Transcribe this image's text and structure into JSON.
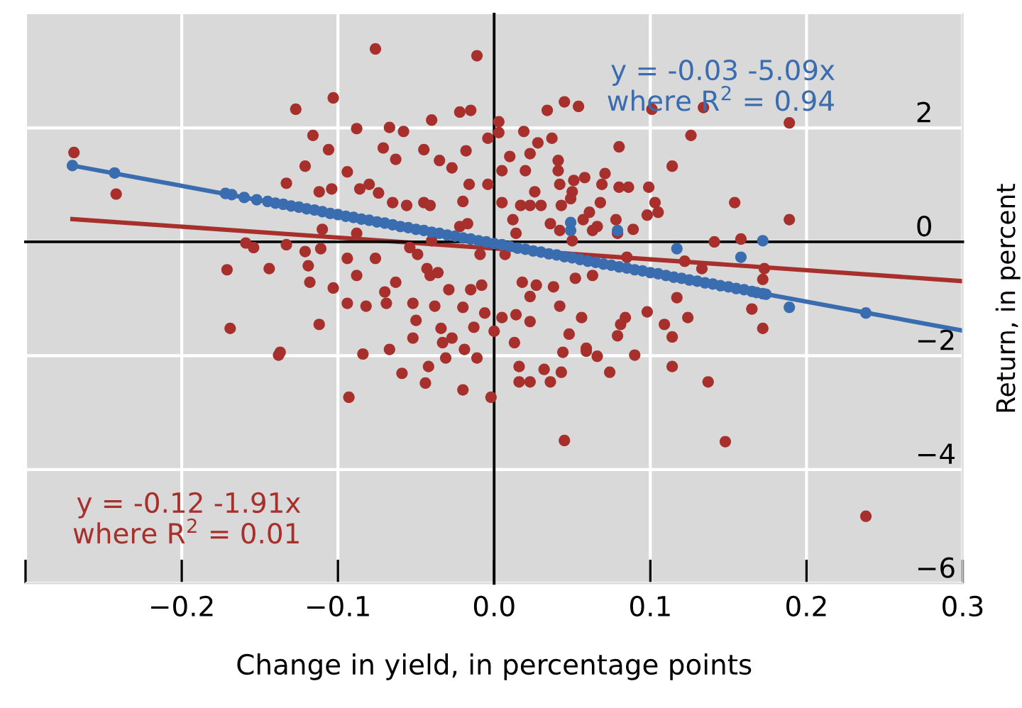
{
  "chart_data": {
    "type": "scatter",
    "xlabel": "Change in yield, in percentage points",
    "ylabel": "Return, in percent",
    "xlim": [
      -0.3,
      0.3
    ],
    "ylim": [
      -6,
      4
    ],
    "xticks": [
      {
        "value": -0.3,
        "label": null
      },
      {
        "value": -0.2,
        "label": "−0.2"
      },
      {
        "value": -0.1,
        "label": "−0.1"
      },
      {
        "value": 0,
        "label": "0.0"
      },
      {
        "value": 0.1,
        "label": "0.1"
      },
      {
        "value": 0.2,
        "label": "0.2"
      },
      {
        "value": 0.3,
        "label": "0.3"
      }
    ],
    "yticks": [
      {
        "value": -6,
        "label": "−6"
      },
      {
        "value": -4,
        "label": "−4"
      },
      {
        "value": -2,
        "label": "−2"
      },
      {
        "value": 0,
        "label": "0"
      },
      {
        "value": 2,
        "label": "2"
      }
    ],
    "grid": true,
    "marker": "circle",
    "legend": false,
    "annotations": [
      "y = -0.12 -1.91x\nwhere R$^{2}$ = 0.01",
      "y = -0.03 -5.09x\nwhere R$^{2}$ = 0.94"
    ],
    "series": [
      {
        "color": "#a8302c",
        "x": [
          -0.076,
          0.045,
          0.054,
          0.101,
          0.134,
          0.189,
          0.034,
          0.126,
          0.114,
          0.08,
          0.154,
          0.189,
          0.141,
          0.158,
          0.173,
          0.172,
          0.165,
          0.172,
          0.124,
          0.109,
          0.114,
          0.117,
          0.122,
          0.133,
          0.105,
          0.098,
          0.103,
          0.089,
          0.078,
          0.085,
          0.069,
          0.068,
          0.08,
          0.086,
          0.071,
          0.058,
          0.051,
          0.05,
          0.042,
          0.043,
          0.041,
          0.041,
          0.049,
          0.061,
          0.066,
          0.099,
          0.019,
          0.023,
          0.028,
          0.037,
          0.01,
          0.005,
          0.02,
          0.003,
          0.003,
          -0.004,
          -0.004,
          0.017,
          0.023,
          0.03,
          0.026,
          0.005,
          0.012,
          0.014,
          0.036,
          0.042,
          0.05,
          0.057,
          0.063,
          0.079,
          0.007,
          0.018,
          0.027,
          0.038,
          0.042,
          0.052,
          0.063,
          0.056,
          0.014,
          0.023,
          0.023,
          0.005,
          0.013,
          0.048,
          0.059,
          0.081,
          0.084,
          0.079,
          0.098,
          0.0,
          0.045,
          0.148,
          0.238,
          -0.138,
          -0.093,
          -0.059,
          -0.044,
          -0.042,
          -0.02,
          -0.002,
          0.016,
          0.023,
          0.036,
          0.043,
          0.032,
          0.016,
          0.074,
          0.114,
          0.137,
          0.09,
          0.066,
          0.059,
          0.044,
          -0.019,
          -0.031,
          -0.067,
          -0.084,
          -0.011,
          -0.269,
          -0.242,
          -0.171,
          -0.144,
          -0.159,
          -0.154,
          -0.133,
          -0.133,
          -0.121,
          -0.127,
          -0.116,
          -0.106,
          -0.103,
          -0.121,
          -0.111,
          -0.119,
          -0.118,
          -0.103,
          -0.11,
          -0.112,
          -0.104,
          -0.169,
          -0.112,
          -0.137,
          -0.094,
          -0.088,
          -0.088,
          -0.094,
          -0.088,
          -0.086,
          -0.08,
          -0.074,
          -0.071,
          -0.067,
          -0.058,
          -0.063,
          -0.045,
          -0.04,
          -0.035,
          -0.027,
          -0.045,
          -0.041,
          -0.056,
          -0.065,
          -0.022,
          -0.015,
          -0.011,
          -0.018,
          -0.016,
          -0.02,
          -0.094,
          -0.082,
          -0.07,
          -0.063,
          -0.069,
          -0.052,
          -0.052,
          -0.05,
          -0.049,
          -0.043,
          -0.041,
          -0.038,
          -0.036,
          -0.034,
          -0.033,
          -0.027,
          -0.029,
          -0.02,
          -0.015,
          -0.022,
          -0.017,
          -0.009,
          -0.008,
          -0.006,
          -0.013,
          -0.04,
          -0.054,
          -0.076
        ],
        "values": [
          3.39,
          2.46,
          2.38,
          2.33,
          2.36,
          2.09,
          2.31,
          1.87,
          1.33,
          1.67,
          0.69,
          0.39,
          0.0,
          0.05,
          -0.47,
          -0.66,
          -1.18,
          -1.52,
          -1.33,
          -1.45,
          -1.67,
          -0.98,
          -0.34,
          -0.47,
          0.52,
          0.47,
          0.69,
          0.22,
          0.39,
          -0.27,
          1.01,
          0.69,
          0.96,
          0.96,
          1.2,
          1.13,
          1.08,
          0.88,
          1.01,
          0.64,
          1.43,
          1.25,
          0.76,
          0.52,
          0.27,
          0.96,
          1.94,
          1.55,
          1.74,
          1.82,
          1.5,
          1.25,
          1.25,
          2.11,
          1.92,
          1.82,
          1.01,
          0.64,
          0.64,
          0.64,
          0.88,
          0.69,
          0.39,
          0.15,
          0.32,
          0.2,
          0.02,
          0.39,
          0.2,
          0.15,
          -0.22,
          -0.71,
          -0.76,
          -0.79,
          -1.13,
          -0.64,
          -0.59,
          -1.33,
          -1.28,
          -0.96,
          -1.4,
          -1.33,
          -1.77,
          -1.62,
          -1.87,
          -1.45,
          -1.33,
          -1.65,
          -1.23,
          -1.57,
          -3.49,
          -3.51,
          -4.82,
          -1.99,
          -2.73,
          -2.31,
          -2.48,
          -2.19,
          -2.6,
          -2.73,
          -2.46,
          -2.46,
          -2.46,
          -2.29,
          -2.24,
          -2.19,
          -2.29,
          -2.19,
          -2.46,
          -1.99,
          -2.01,
          -1.92,
          -1.94,
          -1.89,
          -2.04,
          -1.89,
          -1.97,
          -2.04,
          1.57,
          0.84,
          -0.49,
          -0.47,
          -0.02,
          -0.1,
          -0.05,
          1.03,
          1.33,
          2.33,
          1.87,
          1.62,
          2.53,
          -0.17,
          -0.12,
          -0.42,
          -0.71,
          -0.81,
          0.22,
          0.88,
          0.93,
          -1.52,
          -1.45,
          -1.94,
          1.23,
          1.99,
          0.15,
          -0.29,
          -0.59,
          0.93,
          1.01,
          0.86,
          1.65,
          2.01,
          1.94,
          1.45,
          1.62,
          2.14,
          1.43,
          1.3,
          0.69,
          0.64,
          0.64,
          0.69,
          2.28,
          2.31,
          3.27,
          1.6,
          1.01,
          0.71,
          -1.08,
          -1.13,
          -0.88,
          -0.71,
          -1.08,
          -1.69,
          -1.08,
          -1.38,
          -0.22,
          -0.47,
          -0.59,
          -1.13,
          -0.54,
          -1.52,
          -1.77,
          -1.69,
          -0.84,
          -1.15,
          -0.84,
          0.27,
          0.32,
          -0.22,
          -0.76,
          -1.25,
          -1.5,
          0.02,
          -0.1,
          -0.29
        ]
      },
      {
        "color": "#3a6cb0",
        "x": [
          -0.27,
          -0.243,
          -0.172,
          -0.168,
          -0.16,
          -0.152,
          -0.145,
          -0.14,
          -0.135,
          -0.13,
          -0.125,
          -0.12,
          -0.115,
          -0.11,
          -0.105,
          -0.1,
          -0.095,
          -0.09,
          -0.085,
          -0.08,
          -0.075,
          -0.07,
          -0.065,
          -0.06,
          -0.055,
          -0.05,
          -0.045,
          -0.04,
          -0.035,
          -0.03,
          -0.025,
          -0.02,
          -0.015,
          -0.01,
          -0.005,
          0,
          0.005,
          0.01,
          0.015,
          0.02,
          0.025,
          0.03,
          0.035,
          0.04,
          0.045,
          0.05,
          0.055,
          0.06,
          0.065,
          0.07,
          0.075,
          0.08,
          0.085,
          0.09,
          0.095,
          0.1,
          0.105,
          0.11,
          0.115,
          0.12,
          0.125,
          0.13,
          0.135,
          0.14,
          0.145,
          0.15,
          0.155,
          0.16,
          0.165,
          0.168,
          0.172,
          0.174,
          0.049,
          0.049,
          0.079,
          0.117,
          0.158,
          0.172,
          0.189,
          0.238
        ],
        "values": [
          1.34,
          1.21,
          0.85,
          0.83,
          0.78,
          0.74,
          0.71,
          0.68,
          0.66,
          0.63,
          0.61,
          0.58,
          0.56,
          0.53,
          0.5,
          0.48,
          0.45,
          0.43,
          0.4,
          0.38,
          0.35,
          0.33,
          0.3,
          0.27,
          0.25,
          0.22,
          0.2,
          0.17,
          0.15,
          0.12,
          0.1,
          0.07,
          0.05,
          0.02,
          0.0,
          -0.03,
          -0.05,
          -0.08,
          -0.11,
          -0.13,
          -0.16,
          -0.18,
          -0.21,
          -0.23,
          -0.26,
          -0.28,
          -0.31,
          -0.34,
          -0.36,
          -0.39,
          -0.41,
          -0.44,
          -0.46,
          -0.49,
          -0.51,
          -0.54,
          -0.56,
          -0.59,
          -0.62,
          -0.64,
          -0.67,
          -0.69,
          -0.72,
          -0.74,
          -0.77,
          -0.79,
          -0.82,
          -0.84,
          -0.87,
          -0.89,
          -0.91,
          -0.92,
          0.34,
          0.2,
          0.2,
          -0.12,
          -0.27,
          0.02,
          -1.15,
          -1.25
        ]
      },
      {
        "type": "line",
        "marker": "none",
        "color": "#a8302c",
        "x": [
          -0.27,
          0.3
        ],
        "values": [
          0.4,
          -0.69
        ]
      },
      {
        "type": "line",
        "marker": "none",
        "color": "#3a6cb0",
        "x": [
          -0.27,
          0.3
        ],
        "values": [
          1.34,
          -1.56
        ]
      }
    ]
  }
}
